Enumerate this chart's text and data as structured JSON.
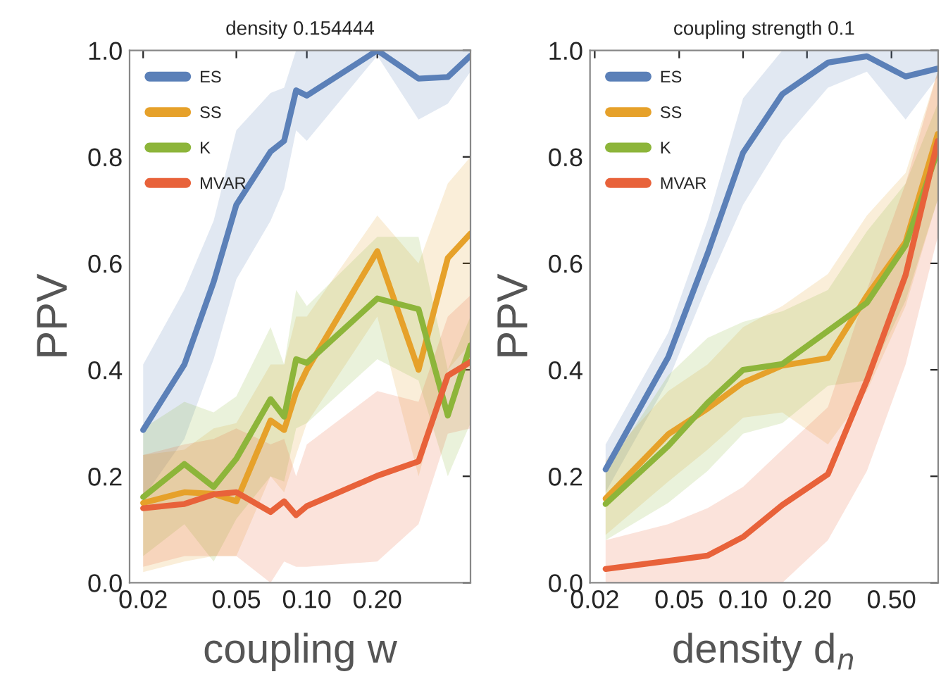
{
  "chart_data": [
    {
      "type": "line",
      "title": "density 0.154444",
      "xlabel": "coupling w",
      "ylabel": "PPV",
      "log": "x",
      "grid": false,
      "legend": "top left",
      "line_style": "solid",
      "marker": "none",
      "xlim": [
        0.0175,
        0.5
      ],
      "xticks": [
        {
          "value": 0.02,
          "label": "0.02"
        },
        {
          "value": 0.05,
          "label": "0.05"
        },
        {
          "value": 0.1,
          "label": "0.10"
        },
        {
          "value": 0.2,
          "label": "0.20"
        }
      ],
      "ylim": [
        0,
        1
      ],
      "yticks": [
        {
          "value": 0,
          "label": "0.0"
        },
        {
          "value": 0.2,
          "label": "0.2"
        },
        {
          "value": 0.4,
          "label": "0.4"
        },
        {
          "value": 0.6,
          "label": "0.6"
        },
        {
          "value": 0.8,
          "label": "0.8"
        },
        {
          "value": 1,
          "label": "1.0"
        }
      ],
      "x": [
        0.02,
        0.03,
        0.04,
        0.05,
        0.07,
        0.08,
        0.09,
        0.1,
        0.2,
        0.3,
        0.4,
        0.5
      ],
      "series": [
        {
          "name": "ES",
          "color": "#5b80b8",
          "values": [
            0.287,
            0.41,
            0.565,
            0.71,
            0.81,
            0.83,
            0.925,
            0.915,
            1.0,
            0.947,
            0.95,
            0.99
          ],
          "lower": [
            0.16,
            0.27,
            0.42,
            0.57,
            0.68,
            0.74,
            0.85,
            0.83,
            0.99,
            0.87,
            0.9,
            0.96
          ],
          "upper": [
            0.41,
            0.55,
            0.68,
            0.85,
            0.92,
            0.93,
            1.0,
            1.0,
            1.0,
            1.0,
            1.0,
            1.0
          ]
        },
        {
          "name": "SS",
          "color": "#e6a12a",
          "values": [
            0.15,
            0.17,
            0.167,
            0.153,
            0.305,
            0.287,
            0.358,
            0.4,
            0.623,
            0.4,
            0.61,
            0.656
          ],
          "lower": [
            0.02,
            0.04,
            0.05,
            0.05,
            0.2,
            0.17,
            0.24,
            0.3,
            0.5,
            0.2,
            0.4,
            0.45
          ],
          "upper": [
            0.24,
            0.25,
            0.29,
            0.3,
            0.41,
            0.41,
            0.5,
            0.5,
            0.69,
            0.6,
            0.75,
            0.8
          ]
        },
        {
          "name": "K",
          "color": "#8db53a",
          "values": [
            0.161,
            0.223,
            0.18,
            0.233,
            0.345,
            0.312,
            0.42,
            0.413,
            0.534,
            0.514,
            0.314,
            0.446
          ],
          "lower": [
            0.05,
            0.11,
            0.04,
            0.12,
            0.2,
            0.19,
            0.29,
            0.3,
            0.42,
            0.38,
            0.2,
            0.3
          ],
          "upper": [
            0.29,
            0.34,
            0.32,
            0.35,
            0.48,
            0.41,
            0.55,
            0.52,
            0.65,
            0.65,
            0.4,
            0.5
          ]
        },
        {
          "name": "MVAR",
          "color": "#e8623a",
          "values": [
            0.14,
            0.148,
            0.166,
            0.17,
            0.133,
            0.153,
            0.127,
            0.144,
            0.201,
            0.228,
            0.389,
            0.415
          ],
          "lower": [
            0.03,
            0.05,
            0.05,
            0.05,
            0.0,
            0.04,
            0.03,
            0.03,
            0.04,
            0.11,
            0.28,
            0.29
          ],
          "upper": [
            0.24,
            0.26,
            0.27,
            0.29,
            0.26,
            0.27,
            0.2,
            0.26,
            0.36,
            0.34,
            0.5,
            0.54
          ]
        }
      ]
    },
    {
      "type": "line",
      "title": "coupling strength 0.1",
      "xlabel": "density d$_{n}$",
      "ylabel": "PPV",
      "log": "x",
      "grid": false,
      "legend": "top left",
      "line_style": "solid",
      "marker": "none",
      "xlim": [
        0.019,
        0.83
      ],
      "xticks": [
        {
          "value": 0.02,
          "label": "0.02"
        },
        {
          "value": 0.05,
          "label": "0.05"
        },
        {
          "value": 0.1,
          "label": "0.10"
        },
        {
          "value": 0.2,
          "label": "0.20"
        },
        {
          "value": 0.5,
          "label": "0.50"
        }
      ],
      "ylim": [
        0,
        1
      ],
      "yticks": [
        {
          "value": 0,
          "label": "0.0"
        },
        {
          "value": 0.2,
          "label": "0.2"
        },
        {
          "value": 0.4,
          "label": "0.4"
        },
        {
          "value": 0.6,
          "label": "0.6"
        },
        {
          "value": 0.8,
          "label": "0.8"
        },
        {
          "value": 1,
          "label": "1.0"
        }
      ],
      "x": [
        0.0225,
        0.0444,
        0.068,
        0.1,
        0.153,
        0.251,
        0.383,
        0.583,
        0.826
      ],
      "series": [
        {
          "name": "ES",
          "color": "#5b80b8",
          "values": [
            0.213,
            0.424,
            0.618,
            0.808,
            0.918,
            0.977,
            0.989,
            0.951,
            0.966
          ],
          "lower": [
            0.17,
            0.38,
            0.56,
            0.71,
            0.83,
            0.93,
            0.96,
            0.87,
            0.95
          ],
          "upper": [
            0.26,
            0.47,
            0.68,
            0.91,
            1.0,
            1.0,
            1.0,
            1.0,
            1.0
          ]
        },
        {
          "name": "SS",
          "color": "#e6a12a",
          "values": [
            0.158,
            0.279,
            0.327,
            0.376,
            0.408,
            0.422,
            0.539,
            0.64,
            0.843
          ],
          "lower": [
            0.09,
            0.19,
            0.25,
            0.31,
            0.32,
            0.26,
            0.36,
            0.52,
            0.72
          ],
          "upper": [
            0.23,
            0.36,
            0.41,
            0.48,
            0.52,
            0.58,
            0.69,
            0.77,
            0.96
          ]
        },
        {
          "name": "K",
          "color": "#8db53a",
          "values": [
            0.148,
            0.257,
            0.338,
            0.4,
            0.411,
            0.473,
            0.526,
            0.634,
            0.812
          ],
          "lower": [
            0.08,
            0.15,
            0.21,
            0.28,
            0.3,
            0.37,
            0.38,
            0.53,
            0.72
          ],
          "upper": [
            0.21,
            0.39,
            0.46,
            0.49,
            0.51,
            0.55,
            0.66,
            0.75,
            0.9
          ]
        },
        {
          "name": "MVAR",
          "color": "#e8623a",
          "values": [
            0.026,
            0.041,
            0.051,
            0.086,
            0.146,
            0.204,
            0.38,
            0.578,
            0.83
          ],
          "lower": [
            0.0,
            0.0,
            0.0,
            0.0,
            0.0,
            0.08,
            0.21,
            0.41,
            0.65
          ],
          "upper": [
            0.08,
            0.11,
            0.14,
            0.18,
            0.25,
            0.33,
            0.55,
            0.75,
            0.96
          ]
        }
      ]
    }
  ]
}
